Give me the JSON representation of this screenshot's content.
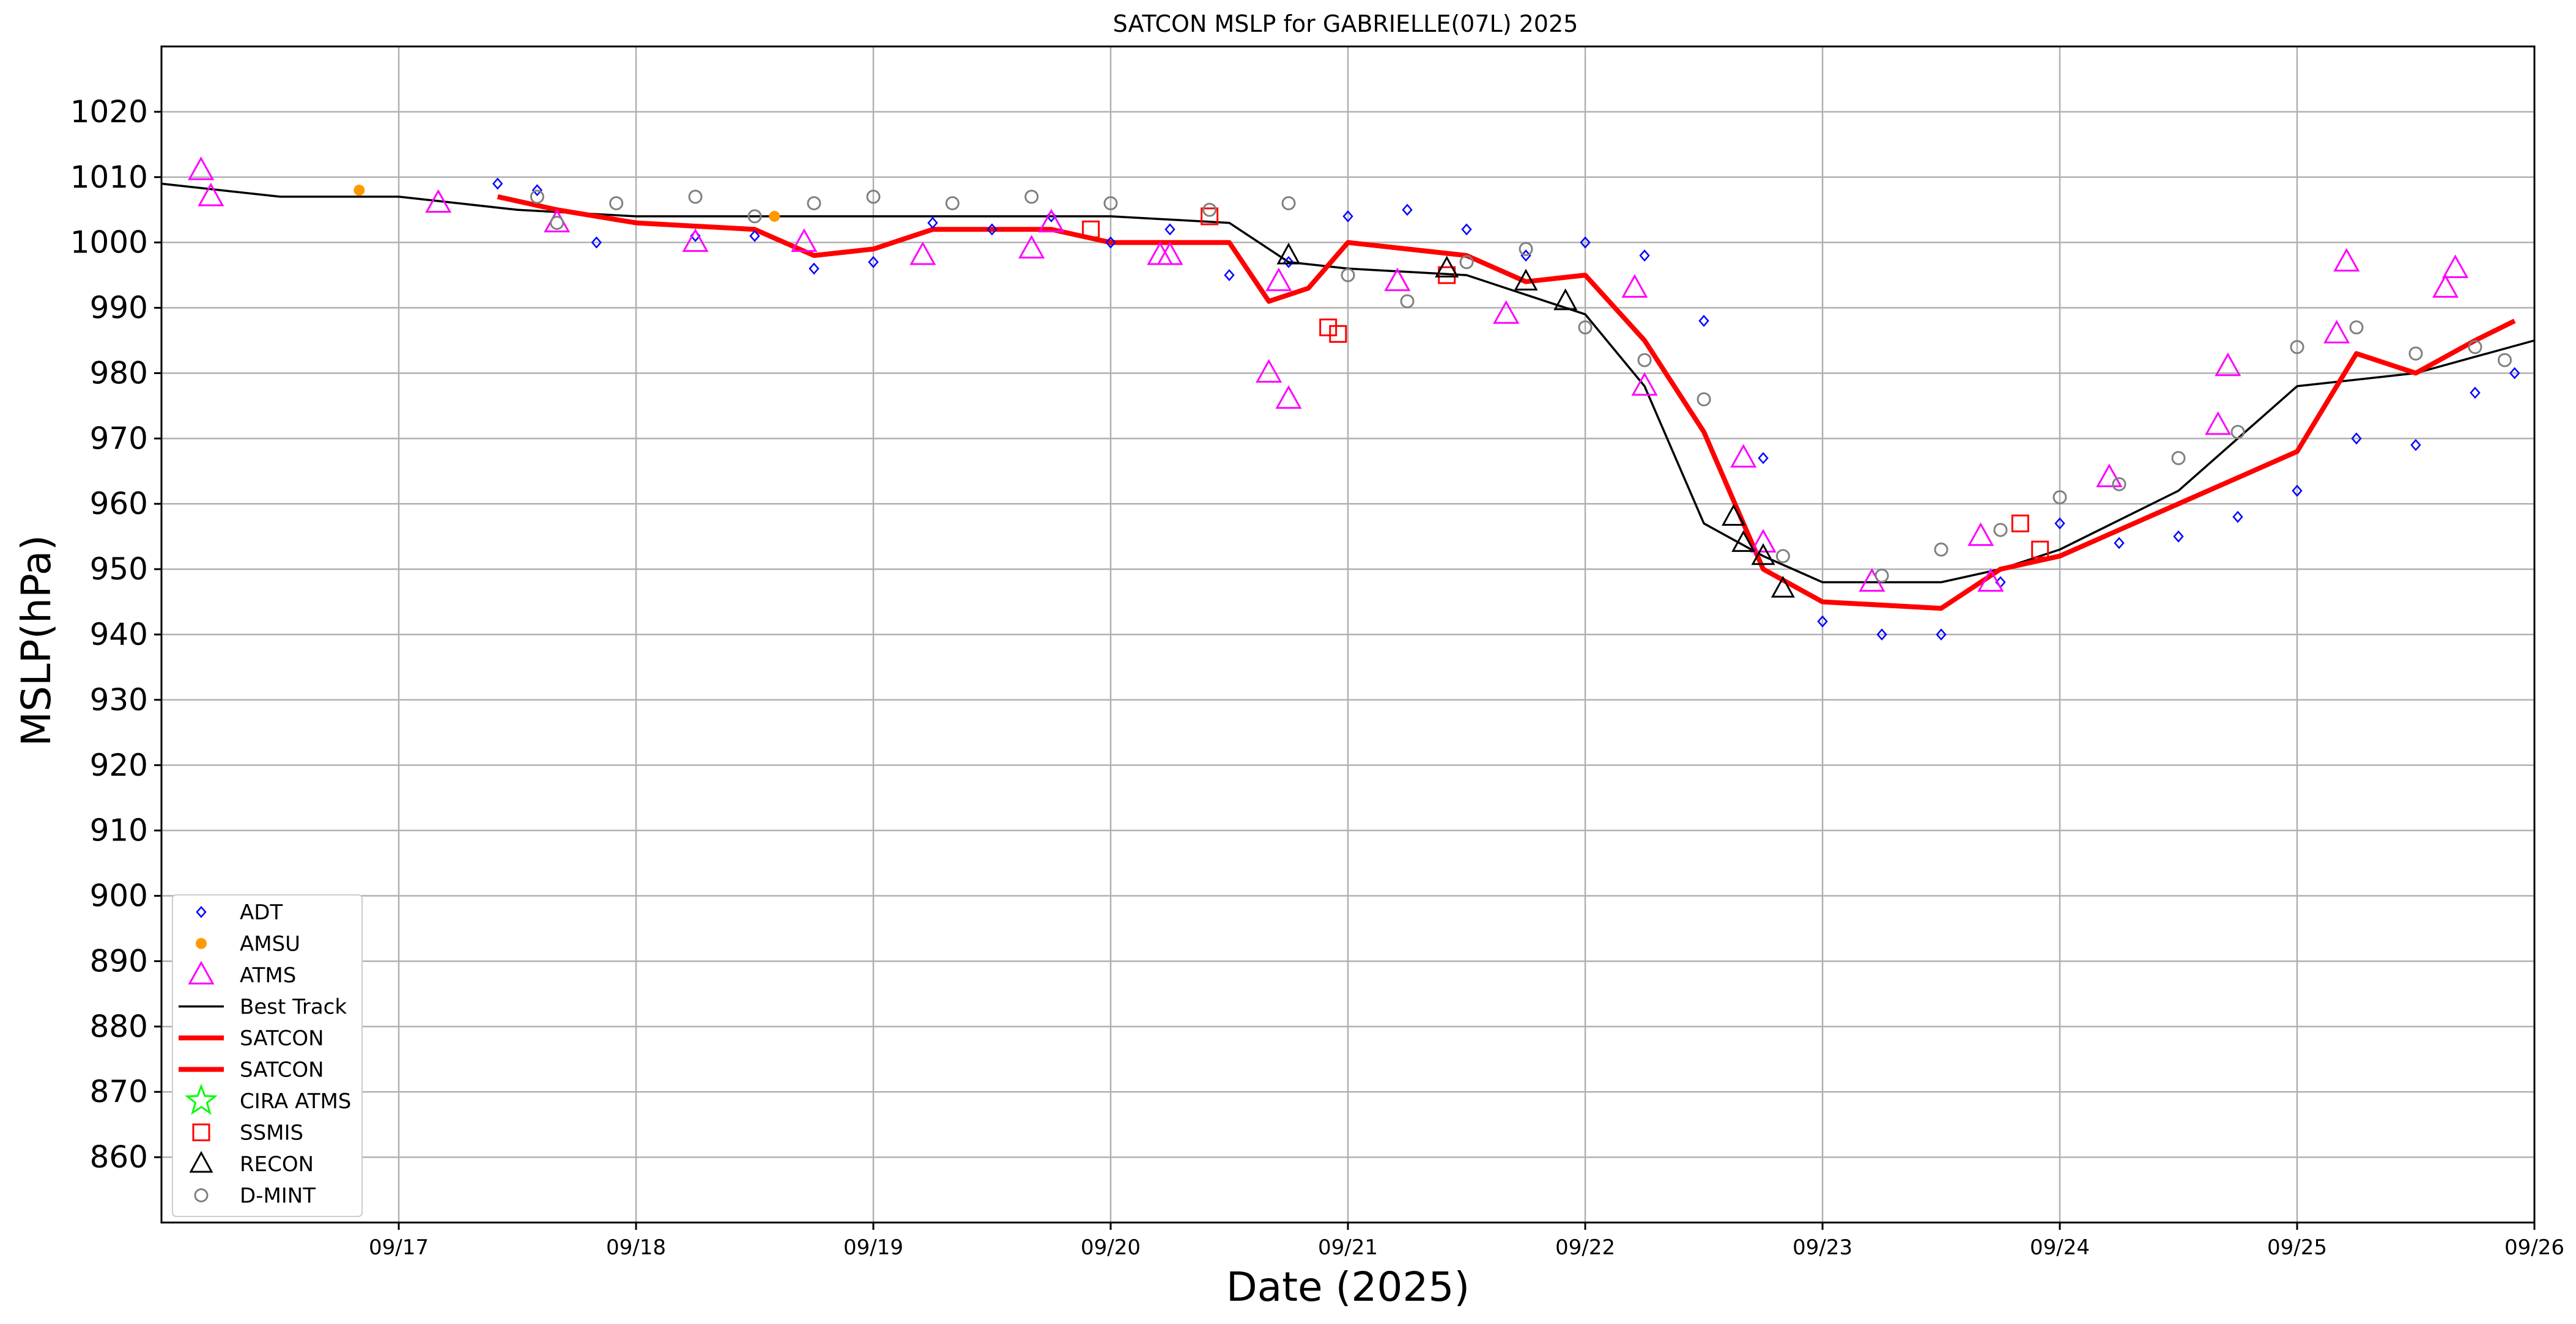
{
  "chart_data": {
    "type": "scatter",
    "title": "SATCON MSLP for GABRIELLE(07L) 2025",
    "xlabel": "Date (2025)",
    "ylabel": "MSLP(hPa)",
    "xlim": [
      "2025-09-16 00:00",
      "2025-09-26 00:00"
    ],
    "ylim": [
      850,
      1030
    ],
    "x_ticks": [
      "09/17",
      "09/18",
      "09/19",
      "09/20",
      "09/21",
      "09/22",
      "09/23",
      "09/24",
      "09/25",
      "09/26"
    ],
    "y_ticks": [
      860,
      870,
      880,
      890,
      900,
      910,
      920,
      930,
      940,
      950,
      960,
      970,
      980,
      990,
      1000,
      1010,
      1020
    ],
    "grid": true,
    "legend_position": "lower-left",
    "legend": [
      "ADT",
      "AMSU",
      "ATMS",
      "Best Track",
      "SATCON",
      "SATCON",
      "CIRA ATMS",
      "SSMIS",
      "RECON",
      "D-MINT"
    ],
    "colors": {
      "ADT": "#0000ff",
      "AMSU": "#ff9900",
      "ATMS": "#ff00ff",
      "Best Track": "#000000",
      "SATCON": "#ff0000",
      "CIRA ATMS": "#00ff00",
      "SSMIS": "#ff0000",
      "RECON": "#000000",
      "D-MINT": "#808080"
    },
    "series": [
      {
        "name": "Best Track",
        "kind": "line",
        "points": [
          [
            "09/16 00:00",
            1009
          ],
          [
            "09/16 12:00",
            1007
          ],
          [
            "09/17 00:00",
            1007
          ],
          [
            "09/17 12:00",
            1005
          ],
          [
            "09/18 00:00",
            1004
          ],
          [
            "09/18 12:00",
            1004
          ],
          [
            "09/19 00:00",
            1004
          ],
          [
            "09/19 12:00",
            1004
          ],
          [
            "09/20 00:00",
            1004
          ],
          [
            "09/20 12:00",
            1003
          ],
          [
            "09/20 18:00",
            997
          ],
          [
            "09/21 00:00",
            996
          ],
          [
            "09/21 12:00",
            995
          ],
          [
            "09/22 00:00",
            989
          ],
          [
            "09/22 06:00",
            978
          ],
          [
            "09/22 12:00",
            957
          ],
          [
            "09/22 18:00",
            952
          ],
          [
            "09/23 00:00",
            948
          ],
          [
            "09/23 12:00",
            948
          ],
          [
            "09/23 18:00",
            950
          ],
          [
            "09/24 00:00",
            953
          ],
          [
            "09/24 12:00",
            962
          ],
          [
            "09/25 00:00",
            978
          ],
          [
            "09/25 12:00",
            980
          ],
          [
            "09/26 00:00",
            985
          ]
        ]
      },
      {
        "name": "SATCON",
        "kind": "line",
        "points": [
          [
            "09/17 10:00",
            1007
          ],
          [
            "09/17 16:00",
            1005
          ],
          [
            "09/18 00:00",
            1003
          ],
          [
            "09/18 12:00",
            1002
          ],
          [
            "09/18 18:00",
            998
          ],
          [
            "09/19 00:00",
            999
          ],
          [
            "09/19 06:00",
            1002
          ],
          [
            "09/19 18:00",
            1002
          ],
          [
            "09/20 00:00",
            1000
          ],
          [
            "09/20 12:00",
            1000
          ],
          [
            "09/20 16:00",
            991
          ],
          [
            "09/20 20:00",
            993
          ],
          [
            "09/21 00:00",
            1000
          ],
          [
            "09/21 12:00",
            998
          ],
          [
            "09/21 18:00",
            994
          ],
          [
            "09/22 00:00",
            995
          ],
          [
            "09/22 06:00",
            985
          ],
          [
            "09/22 12:00",
            971
          ],
          [
            "09/22 18:00",
            950
          ],
          [
            "09/23 00:00",
            945
          ],
          [
            "09/23 12:00",
            944
          ],
          [
            "09/23 18:00",
            950
          ],
          [
            "09/24 00:00",
            952
          ],
          [
            "09/24 12:00",
            960
          ],
          [
            "09/24 18:00",
            964
          ],
          [
            "09/25 00:00",
            968
          ],
          [
            "09/25 06:00",
            983
          ],
          [
            "09/25 12:00",
            980
          ],
          [
            "09/25 18:00",
            985
          ],
          [
            "09/25 22:00",
            988
          ]
        ]
      },
      {
        "name": "ADT",
        "kind": "diamond",
        "points": [
          [
            "09/17 10:00",
            1009
          ],
          [
            "09/17 14:00",
            1008
          ],
          [
            "09/17 20:00",
            1000
          ],
          [
            "09/18 06:00",
            1001
          ],
          [
            "09/18 12:00",
            1001
          ],
          [
            "09/18 18:00",
            996
          ],
          [
            "09/19 00:00",
            997
          ],
          [
            "09/19 06:00",
            1003
          ],
          [
            "09/19 12:00",
            1002
          ],
          [
            "09/19 18:00",
            1004
          ],
          [
            "09/20 00:00",
            1000
          ],
          [
            "09/20 06:00",
            1002
          ],
          [
            "09/20 12:00",
            995
          ],
          [
            "09/20 18:00",
            997
          ],
          [
            "09/21 00:00",
            1004
          ],
          [
            "09/21 06:00",
            1005
          ],
          [
            "09/21 12:00",
            1002
          ],
          [
            "09/21 18:00",
            998
          ],
          [
            "09/22 00:00",
            1000
          ],
          [
            "09/22 06:00",
            998
          ],
          [
            "09/22 12:00",
            988
          ],
          [
            "09/22 18:00",
            967
          ],
          [
            "09/23 00:00",
            942
          ],
          [
            "09/23 06:00",
            940
          ],
          [
            "09/23 12:00",
            940
          ],
          [
            "09/23 18:00",
            948
          ],
          [
            "09/24 00:00",
            957
          ],
          [
            "09/24 06:00",
            954
          ],
          [
            "09/24 12:00",
            955
          ],
          [
            "09/24 18:00",
            958
          ],
          [
            "09/25 00:00",
            962
          ],
          [
            "09/25 06:00",
            970
          ],
          [
            "09/25 12:00",
            969
          ],
          [
            "09/25 18:00",
            977
          ],
          [
            "09/25 22:00",
            980
          ]
        ]
      },
      {
        "name": "AMSU",
        "kind": "dot",
        "points": [
          [
            "09/16 20:00",
            1008
          ],
          [
            "09/18 14:00",
            1004
          ]
        ]
      },
      {
        "name": "ATMS",
        "kind": "triangle",
        "points": [
          [
            "09/16 04:00",
            1011
          ],
          [
            "09/16 05:00",
            1007
          ],
          [
            "09/17 04:00",
            1006
          ],
          [
            "09/17 16:00",
            1003
          ],
          [
            "09/18 06:00",
            1000
          ],
          [
            "09/18 17:00",
            1000
          ],
          [
            "09/19 05:00",
            998
          ],
          [
            "09/19 16:00",
            999
          ],
          [
            "09/19 18:00",
            1003
          ],
          [
            "09/20 05:00",
            998
          ],
          [
            "09/20 06:00",
            998
          ],
          [
            "09/20 16:00",
            980
          ],
          [
            "09/20 17:00",
            994
          ],
          [
            "09/20 18:00",
            976
          ],
          [
            "09/21 05:00",
            994
          ],
          [
            "09/21 16:00",
            989
          ],
          [
            "09/22 05:00",
            993
          ],
          [
            "09/22 06:00",
            978
          ],
          [
            "09/22 16:00",
            967
          ],
          [
            "09/22 18:00",
            954
          ],
          [
            "09/23 05:00",
            948
          ],
          [
            "09/23 16:00",
            955
          ],
          [
            "09/23 17:00",
            948
          ],
          [
            "09/24 05:00",
            964
          ],
          [
            "09/24 16:00",
            972
          ],
          [
            "09/24 17:00",
            981
          ],
          [
            "09/25 04:00",
            986
          ],
          [
            "09/25 05:00",
            997
          ],
          [
            "09/25 15:00",
            993
          ],
          [
            "09/25 16:00",
            996
          ]
        ]
      },
      {
        "name": "SSMIS",
        "kind": "square",
        "points": [
          [
            "09/19 22:00",
            1002
          ],
          [
            "09/20 10:00",
            1004
          ],
          [
            "09/20 22:00",
            987
          ],
          [
            "09/20 23:00",
            986
          ],
          [
            "09/21 10:00",
            995
          ],
          [
            "09/23 20:00",
            957
          ],
          [
            "09/23 22:00",
            953
          ]
        ]
      },
      {
        "name": "RECON",
        "kind": "open-triangle",
        "points": [
          [
            "09/20 18:00",
            998
          ],
          [
            "09/21 10:00",
            996
          ],
          [
            "09/21 18:00",
            994
          ],
          [
            "09/21 22:00",
            991
          ],
          [
            "09/22 15:00",
            958
          ],
          [
            "09/22 16:00",
            954
          ],
          [
            "09/22 18:00",
            952
          ],
          [
            "09/22 20:00",
            947
          ]
        ]
      },
      {
        "name": "D-MINT",
        "kind": "circle",
        "points": [
          [
            "09/17 14:00",
            1007
          ],
          [
            "09/17 16:00",
            1003
          ],
          [
            "09/17 22:00",
            1006
          ],
          [
            "09/18 06:00",
            1007
          ],
          [
            "09/18 12:00",
            1004
          ],
          [
            "09/18 18:00",
            1006
          ],
          [
            "09/19 00:00",
            1007
          ],
          [
            "09/19 08:00",
            1006
          ],
          [
            "09/19 16:00",
            1007
          ],
          [
            "09/20 00:00",
            1006
          ],
          [
            "09/20 10:00",
            1005
          ],
          [
            "09/20 18:00",
            1006
          ],
          [
            "09/21 00:00",
            995
          ],
          [
            "09/21 06:00",
            991
          ],
          [
            "09/21 12:00",
            997
          ],
          [
            "09/21 18:00",
            999
          ],
          [
            "09/22 00:00",
            987
          ],
          [
            "09/22 06:00",
            982
          ],
          [
            "09/22 12:00",
            976
          ],
          [
            "09/22 20:00",
            952
          ],
          [
            "09/23 06:00",
            949
          ],
          [
            "09/23 12:00",
            953
          ],
          [
            "09/23 18:00",
            956
          ],
          [
            "09/24 00:00",
            961
          ],
          [
            "09/24 06:00",
            963
          ],
          [
            "09/24 12:00",
            967
          ],
          [
            "09/24 18:00",
            971
          ],
          [
            "09/25 00:00",
            984
          ],
          [
            "09/25 06:00",
            987
          ],
          [
            "09/25 12:00",
            983
          ],
          [
            "09/25 18:00",
            984
          ],
          [
            "09/25 21:00",
            982
          ]
        ]
      }
    ]
  }
}
